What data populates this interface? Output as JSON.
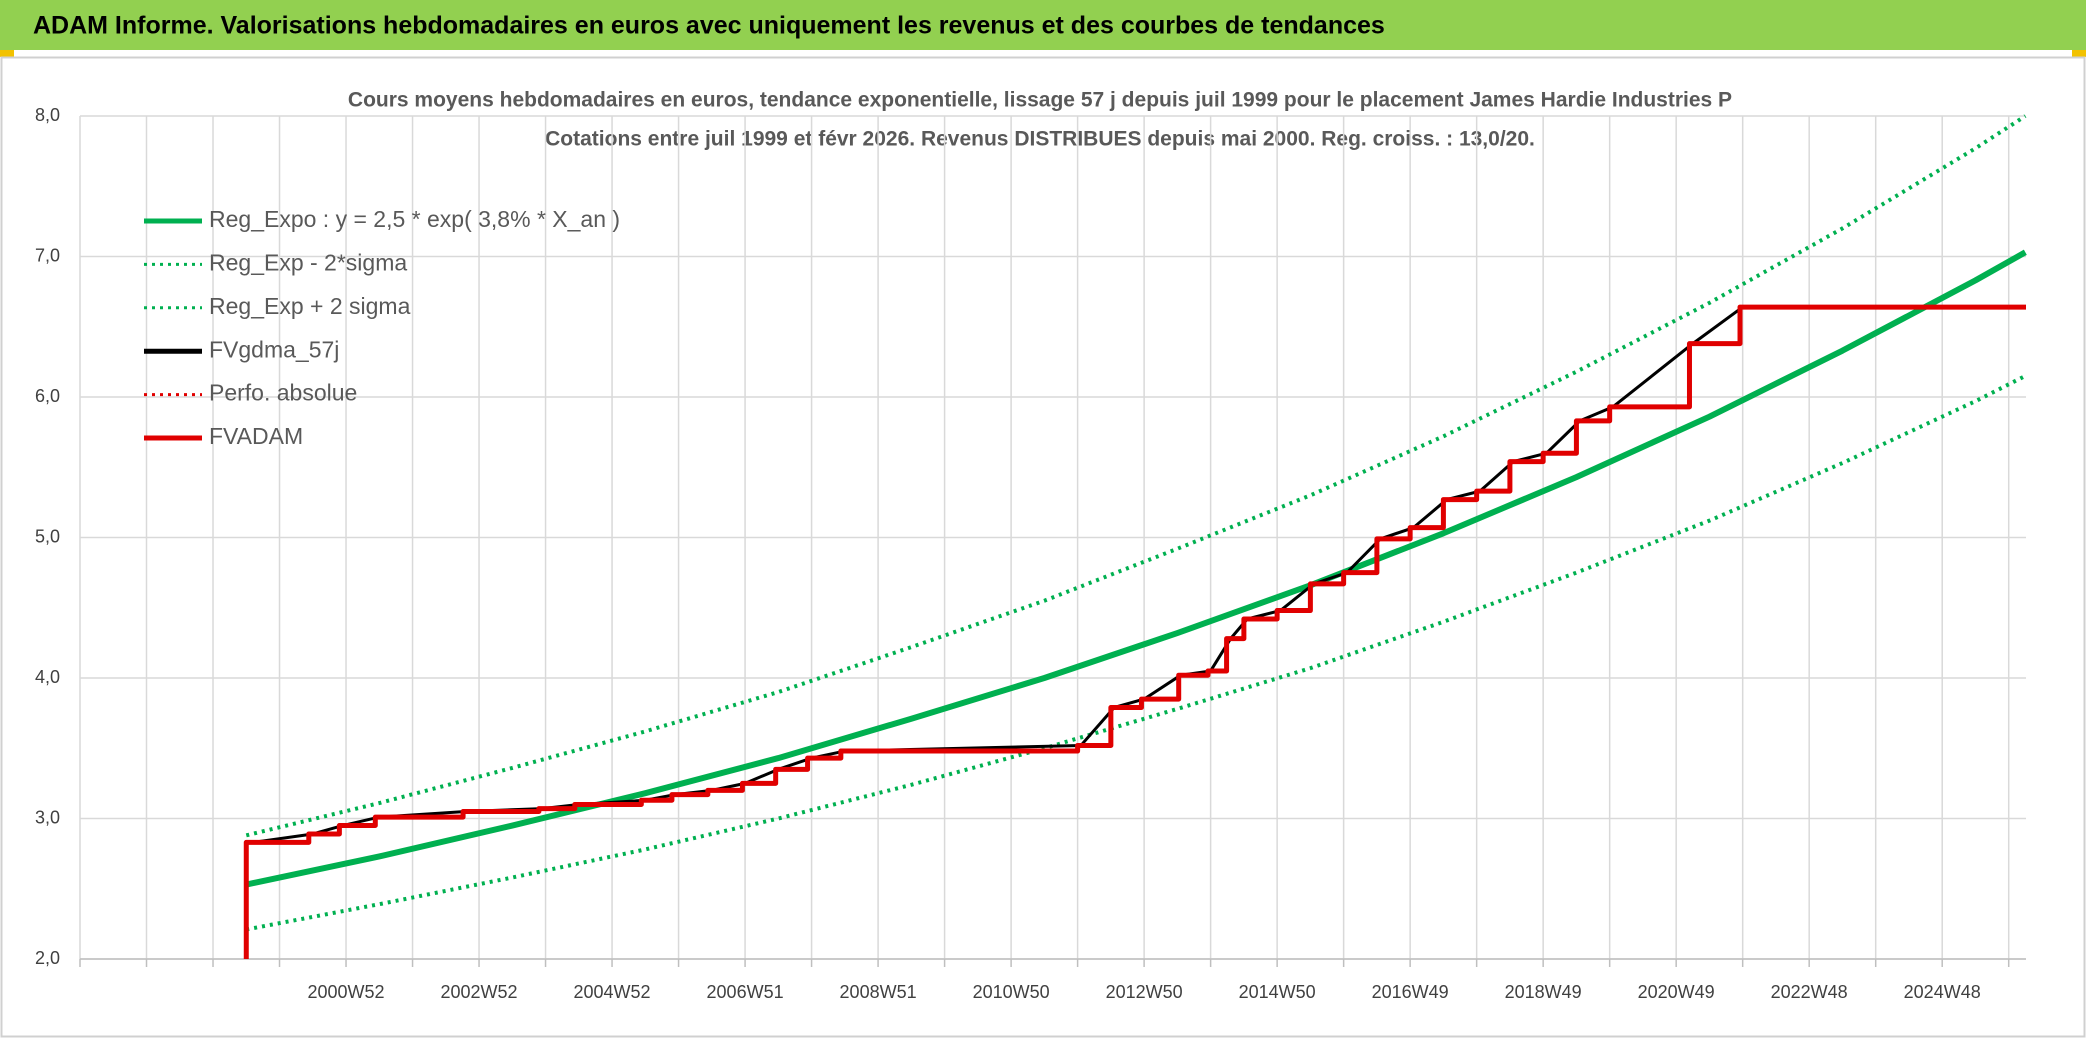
{
  "header": {
    "title": "ADAM Informe. Valorisations hebdomadaires en euros avec uniquement les revenus et des courbes de tendances"
  },
  "chart_data": {
    "type": "line",
    "title": "Cours moyens hebdomadaires en euros, tendance exponentielle, lissage 57 j depuis juil 1999 pour le placement James Hardie Industries P",
    "subtitle": "Cotations entre juil 1999 et févr 2026. Revenus DISTRIBUES depuis mai 2000. Reg. croiss. : 13,0/20.",
    "xlim": [
      1997,
      2026.26
    ],
    "xticks": [
      1997,
      1998,
      1999,
      2000,
      {
        "value": 2001,
        "label": "2000W52"
      },
      2002,
      {
        "value": 2003,
        "label": "2002W52"
      },
      2004,
      {
        "value": 2005,
        "label": "2004W52"
      },
      2006,
      {
        "value": 2007,
        "label": "2006W51"
      },
      2008,
      {
        "value": 2009,
        "label": "2008W51"
      },
      2010,
      {
        "value": 2011,
        "label": "2010W50"
      },
      2012,
      {
        "value": 2013,
        "label": "2012W50"
      },
      2014,
      {
        "value": 2015,
        "label": "2014W50"
      },
      2016,
      {
        "value": 2017,
        "label": "2016W49"
      },
      2018,
      {
        "value": 2019,
        "label": "2018W49"
      },
      2020,
      {
        "value": 2021,
        "label": "2020W49"
      },
      2022,
      {
        "value": 2023,
        "label": "2022W48"
      },
      2024,
      {
        "value": 2025,
        "label": "2024W48"
      },
      2026
    ],
    "ylim": [
      2,
      8
    ],
    "yticks": [
      {
        "value": 2,
        "label": "2,0"
      },
      {
        "value": 3,
        "label": "3,0"
      },
      {
        "value": 4,
        "label": "4,0"
      },
      {
        "value": 5,
        "label": "5,0"
      },
      {
        "value": 6,
        "label": "6,0"
      },
      {
        "value": 7,
        "label": "7,0"
      },
      {
        "value": 8,
        "label": "8,0"
      }
    ],
    "grid": true,
    "legend": "upper left",
    "series": [
      {
        "name": "Reg_Expo : y = 2,5 * exp( 3,8% *  X_an )",
        "color": "#00b050",
        "style": "solid",
        "x": [
          1999.5,
          2001.5,
          2003.5,
          2005.5,
          2007.5,
          2009.5,
          2011.5,
          2013.5,
          2015.5,
          2017.5,
          2019.5,
          2021.5,
          2023.5,
          2025.5,
          2026.25
        ],
        "values": [
          2.53,
          2.73,
          2.95,
          3.18,
          3.43,
          3.71,
          4.0,
          4.32,
          4.66,
          5.03,
          5.43,
          5.86,
          6.33,
          6.83,
          7.03
        ]
      },
      {
        "name": "Reg_Exp - 2*sigma",
        "color": "#00b050",
        "style": "dotted",
        "x": [
          1999.5,
          2001.5,
          2003.5,
          2005.5,
          2007.5,
          2009.5,
          2011.5,
          2013.5,
          2015.5,
          2017.5,
          2019.5,
          2021.5,
          2023.5,
          2025.5,
          2026.25
        ],
        "values": [
          2.21,
          2.39,
          2.58,
          2.78,
          3.0,
          3.24,
          3.5,
          3.78,
          4.07,
          4.4,
          4.75,
          5.12,
          5.53,
          5.97,
          6.15
        ]
      },
      {
        "name": "Reg_Exp + 2 sigma",
        "color": "#00b050",
        "style": "dotted",
        "x": [
          1999.5,
          2001.5,
          2003.5,
          2005.5,
          2007.5,
          2009.5,
          2011.5,
          2013.5,
          2015.5,
          2017.5,
          2019.5,
          2021.5,
          2023.5,
          2025.5,
          2026.25
        ],
        "values": [
          2.88,
          3.11,
          3.36,
          3.62,
          3.9,
          4.22,
          4.55,
          4.92,
          5.3,
          5.72,
          6.18,
          6.67,
          7.2,
          7.77,
          8.0
        ]
      },
      {
        "name": "FVgdma_57j",
        "color": "#000000",
        "style": "solid",
        "x": [
          1999.6,
          2000.5,
          2000.95,
          2001.5,
          2002.8,
          2003.95,
          2004.5,
          2005.5,
          2005.95,
          2006.5,
          2007.0,
          2007.5,
          2008.0,
          2008.5,
          2012.05,
          2012.55,
          2013.0,
          2013.55,
          2014.0,
          2014.3,
          2014.55,
          2015.05,
          2015.55,
          2016.05,
          2016.55,
          2017.05,
          2017.55,
          2018.05,
          2018.55,
          2019.05,
          2019.55,
          2020.05,
          2021.25,
          2022.0,
          2026.26
        ],
        "values": [
          2.83,
          2.89,
          2.95,
          3.01,
          3.05,
          3.07,
          3.1,
          3.13,
          3.17,
          3.2,
          3.25,
          3.35,
          3.43,
          3.48,
          3.52,
          3.79,
          3.85,
          4.02,
          4.05,
          4.28,
          4.42,
          4.48,
          4.67,
          4.75,
          4.99,
          5.07,
          5.27,
          5.33,
          5.54,
          5.6,
          5.83,
          5.93,
          6.38,
          6.64,
          6.64
        ]
      },
      {
        "name": "Perfo. absolue",
        "color": "#e00000",
        "style": "dotted"
      },
      {
        "name": "FVADAM",
        "color": "#e00000",
        "style": "solid",
        "step": true,
        "x": [
          1999.5,
          1999.5,
          2000.44,
          2000.9,
          2001.44,
          2002.76,
          2003.9,
          2004.44,
          2005.44,
          2005.9,
          2006.44,
          2006.96,
          2007.46,
          2007.94,
          2008.44,
          2012.0,
          2012.5,
          2012.96,
          2013.52,
          2013.96,
          2014.24,
          2014.5,
          2015.0,
          2015.5,
          2016.0,
          2016.5,
          2017.0,
          2017.5,
          2018.0,
          2018.5,
          2019.0,
          2019.5,
          2020.0,
          2021.2,
          2021.96,
          2026.26
        ],
        "values": [
          2.0,
          2.83,
          2.89,
          2.95,
          3.01,
          3.05,
          3.07,
          3.1,
          3.13,
          3.17,
          3.2,
          3.25,
          3.35,
          3.43,
          3.48,
          3.52,
          3.79,
          3.85,
          4.02,
          4.05,
          4.28,
          4.42,
          4.48,
          4.67,
          4.75,
          4.99,
          5.07,
          5.27,
          5.33,
          5.54,
          5.6,
          5.83,
          5.93,
          6.38,
          6.64,
          6.64
        ]
      }
    ]
  }
}
